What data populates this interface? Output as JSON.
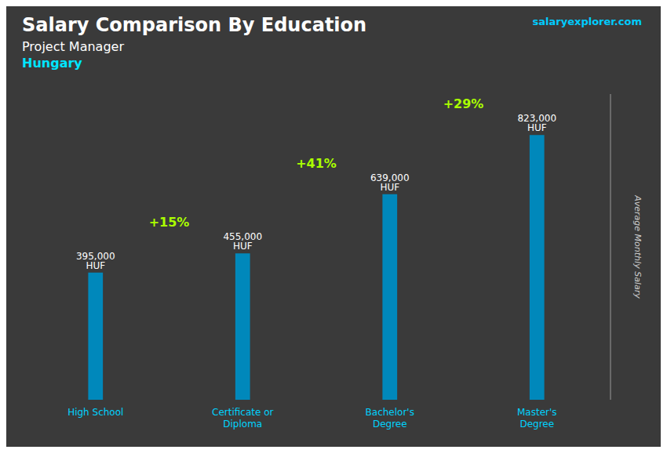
{
  "chart_data": {
    "type": "bar",
    "title": "Salary Comparison By Education",
    "subtitle": "Project Manager",
    "categories": [
      "High School",
      "Certificate or\nDiploma",
      "Bachelor's\nDegree",
      "Master's\nDegree"
    ],
    "values": [
      395000,
      455000,
      639000,
      823000
    ],
    "value_labels": [
      "395,000 HUF",
      "455,000 HUF",
      "639,000 HUF",
      "823,000 HUF"
    ],
    "data_labels": true,
    "color": "#0088bb",
    "ylabel": "Average Monthly Salary",
    "ylim": [
      0,
      950000
    ],
    "tick_labels": "x",
    "grid": false,
    "annotations": [
      {
        "text": "Hungary",
        "color": "#00e5ff"
      },
      {
        "text": "salaryexplorer.com",
        "color": "#00ccff"
      },
      {
        "text": "+15%",
        "between": [
          "High School",
          "Certificate or\nDiploma"
        ],
        "color": "#aaff00"
      },
      {
        "text": "+41%",
        "between": [
          "Certificate or\nDiploma",
          "Bachelor's\nDegree"
        ],
        "color": "#aaff00"
      },
      {
        "text": "+29%",
        "between": [
          "Bachelor's\nDegree",
          "Master's\nDegree"
        ],
        "color": "#aaff00"
      }
    ]
  }
}
